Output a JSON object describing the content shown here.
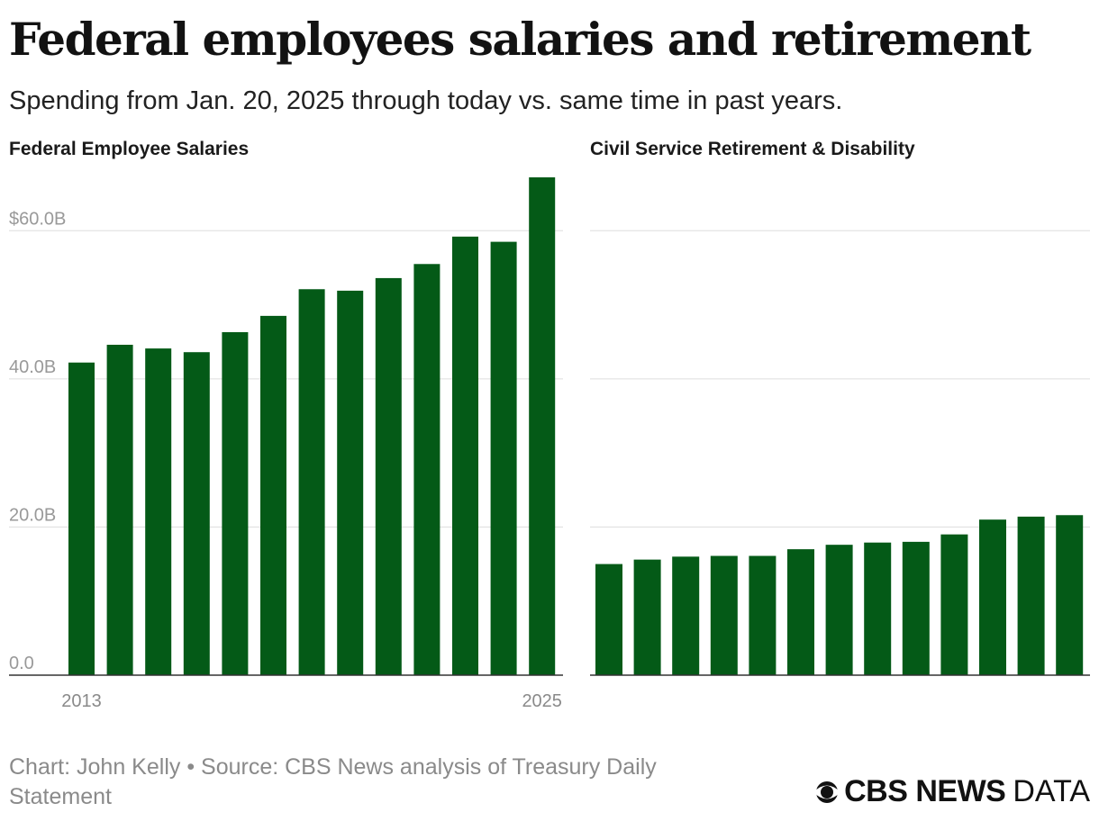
{
  "header": {
    "title": "Federal employees salaries and retirement",
    "subtitle": "Spending from Jan. 20, 2025 through today vs. same time in past years."
  },
  "colors": {
    "bar": "#045a17",
    "grid": "#dddddd",
    "axis": "#333333",
    "tick": "#999999",
    "year": "#8a8a8a"
  },
  "chart_data": [
    {
      "type": "bar",
      "title": "Federal Employee Salaries",
      "x": [
        2013,
        2014,
        2015,
        2016,
        2017,
        2018,
        2019,
        2020,
        2021,
        2022,
        2023,
        2024,
        2025
      ],
      "x_tick_labels": [
        "2013",
        "2025"
      ],
      "values": [
        42.2,
        44.6,
        44.1,
        43.6,
        46.3,
        48.5,
        52.1,
        51.9,
        53.6,
        55.5,
        59.2,
        58.5,
        67.2
      ],
      "unit": "billions of dollars",
      "ylim": [
        0,
        67.2
      ],
      "y_ticks": [
        0,
        20,
        40,
        60
      ],
      "y_tick_labels": [
        "0.0",
        "20.0B",
        "40.0B",
        "$60.0B"
      ],
      "grid": true
    },
    {
      "type": "bar",
      "title": "Civil Service Retirement & Disability",
      "x": [
        2013,
        2014,
        2015,
        2016,
        2017,
        2018,
        2019,
        2020,
        2021,
        2022,
        2023,
        2024,
        2025
      ],
      "values": [
        15.0,
        15.6,
        16.0,
        16.1,
        16.1,
        17.0,
        17.6,
        17.9,
        18.0,
        19.0,
        21.0,
        21.4,
        21.6
      ],
      "unit": "billions of dollars",
      "ylim": [
        0,
        67.2
      ],
      "y_ticks": [
        0,
        20,
        40,
        60
      ],
      "grid": true
    }
  ],
  "footer": {
    "source": "Chart: John Kelly • Source: CBS News analysis of Treasury Daily Statement",
    "logo_bold": "CBS NEWS",
    "logo_light": "DATA"
  }
}
